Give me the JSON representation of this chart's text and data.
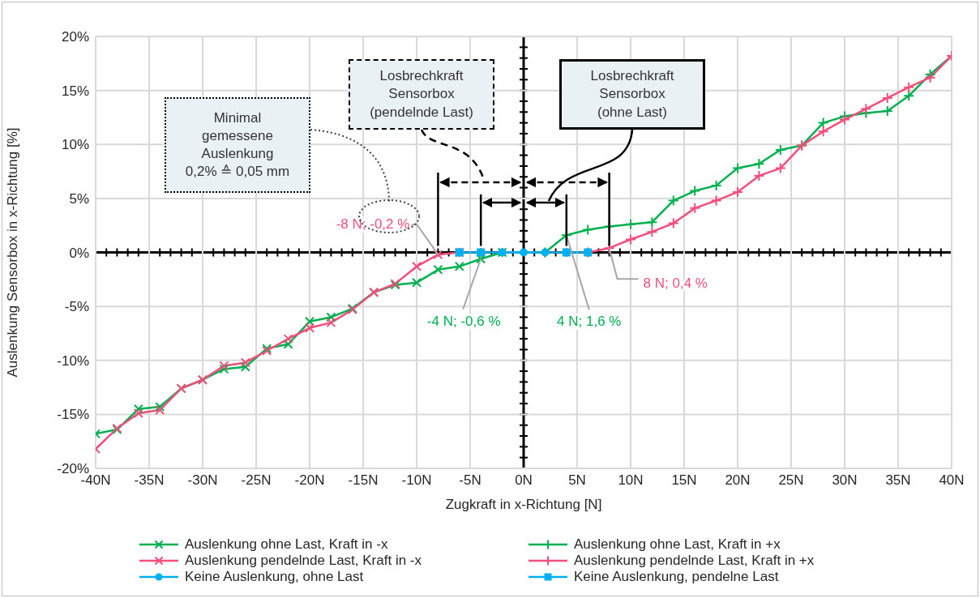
{
  "chart_data": {
    "type": "line",
    "xlabel": "Zugkraft in x-Richtung [N]",
    "ylabel": "Auslenkung Sensorbox in x-Richtung [%]",
    "xlim": [
      -40,
      40
    ],
    "ylim": [
      -20,
      20
    ],
    "xticks": [
      {
        "value": -40,
        "label": "-40N"
      },
      {
        "value": -35,
        "label": "-35N"
      },
      {
        "value": -30,
        "label": "-30N"
      },
      {
        "value": -25,
        "label": "-25N"
      },
      {
        "value": -20,
        "label": "-20N"
      },
      {
        "value": -15,
        "label": "-15N"
      },
      {
        "value": -10,
        "label": "-10N"
      },
      {
        "value": -5,
        "label": "-5N"
      },
      {
        "value": 0,
        "label": "0N"
      },
      {
        "value": 5,
        "label": "5N"
      },
      {
        "value": 10,
        "label": "10N"
      },
      {
        "value": 15,
        "label": "15N"
      },
      {
        "value": 20,
        "label": "20N"
      },
      {
        "value": 25,
        "label": "25N"
      },
      {
        "value": 30,
        "label": "30N"
      },
      {
        "value": 35,
        "label": "35N"
      },
      {
        "value": 40,
        "label": "40N"
      }
    ],
    "yticks": [
      {
        "value": -20,
        "label": "-20%"
      },
      {
        "value": -15,
        "label": "-15%"
      },
      {
        "value": -10,
        "label": "-10%"
      },
      {
        "value": -5,
        "label": "-5%"
      },
      {
        "value": 0,
        "label": "0%"
      },
      {
        "value": 5,
        "label": "5%"
      },
      {
        "value": 10,
        "label": "10%"
      },
      {
        "value": 15,
        "label": "15%"
      },
      {
        "value": 20,
        "label": "20%"
      }
    ],
    "grid": true,
    "legend": "bottom",
    "series": [
      {
        "name": "Auslenkung ohne Last, Kraft in -x",
        "color": "#00b050",
        "marker": "cross",
        "x": [
          -40,
          -38,
          -36,
          -34,
          -32,
          -30,
          -28,
          -26,
          -24,
          -22,
          -20,
          -18,
          -16,
          -14,
          -12,
          -10,
          -8,
          -6,
          -4,
          -2
        ],
        "values": [
          -16.8,
          -16.4,
          -14.5,
          -14.3,
          -12.6,
          -11.8,
          -10.8,
          -10.6,
          -8.9,
          -8.5,
          -6.4,
          -6.0,
          -5.2,
          -3.7,
          -3.0,
          -2.8,
          -1.6,
          -1.3,
          -0.6,
          0
        ]
      },
      {
        "name": "Auslenkung ohne Last, Kraft in +x",
        "color": "#00b050",
        "marker": "plus",
        "x": [
          2,
          4,
          6,
          8,
          10,
          12,
          14,
          16,
          18,
          20,
          22,
          24,
          26,
          28,
          30,
          32,
          34,
          36,
          38,
          40
        ],
        "values": [
          0,
          1.6,
          2.1,
          2.4,
          2.6,
          2.8,
          4.8,
          5.7,
          6.2,
          7.8,
          8.2,
          9.5,
          9.9,
          12.0,
          12.6,
          12.9,
          13.1,
          14.5,
          16.5,
          18.2
        ]
      },
      {
        "name": "Auslenkung pendelnde Last, Kraft in -x",
        "color": "#f24f7c",
        "marker": "cross",
        "x": [
          -40,
          -38,
          -36,
          -34,
          -32,
          -30,
          -28,
          -26,
          -24,
          -22,
          -20,
          -18,
          -16,
          -14,
          -12,
          -10,
          -8,
          -6
        ],
        "values": [
          -18.2,
          -16.3,
          -14.9,
          -14.6,
          -12.6,
          -11.8,
          -10.5,
          -10.2,
          -9.1,
          -8.0,
          -7.0,
          -6.5,
          -5.3,
          -3.7,
          -2.9,
          -1.3,
          -0.2,
          0
        ]
      },
      {
        "name": "Auslenkung pendelnde Last, Kraft in +x",
        "color": "#f24f7c",
        "marker": "plus",
        "x": [
          6,
          8,
          10,
          12,
          14,
          16,
          18,
          20,
          22,
          24,
          26,
          28,
          30,
          32,
          34,
          36,
          38,
          40
        ],
        "values": [
          0,
          0.4,
          1.2,
          1.9,
          2.7,
          4.1,
          4.8,
          5.6,
          7.1,
          7.8,
          9.9,
          11.2,
          12.3,
          13.3,
          14.3,
          15.3,
          16.2,
          18.2
        ]
      },
      {
        "name": "Keine Auslenkung, ohne Last",
        "color": "#00b0f0",
        "marker": "circle",
        "x": [
          -2,
          0,
          2
        ],
        "values": [
          0,
          0,
          0
        ]
      },
      {
        "name": "Keine Auslenkung, pendelne Last",
        "color": "#00b0f0",
        "marker": "square",
        "x": [
          -6,
          -4,
          4,
          6
        ],
        "values": [
          0,
          0,
          0,
          0
        ]
      }
    ],
    "annotations": [
      "Minimal\ngemessene\nAuslenkung\n0,2% ≙ 0,05 mm",
      "Losbrechkraft\nSensorbox\n(pendelnde  Last)",
      "Losbrechkraft\nSensorbox\n(ohne Last)",
      {
        "text": "-8 N; -0,2 %",
        "x": -8,
        "y": -0.2
      },
      {
        "text": "-4 N; -0,6 %",
        "x": -4,
        "y": -0.6
      },
      {
        "text": "4 N; 1,6 %",
        "x": 4,
        "y": 1.6
      },
      {
        "text": "8 N; 0,4 %",
        "x": 8,
        "y": 0.4
      }
    ]
  }
}
